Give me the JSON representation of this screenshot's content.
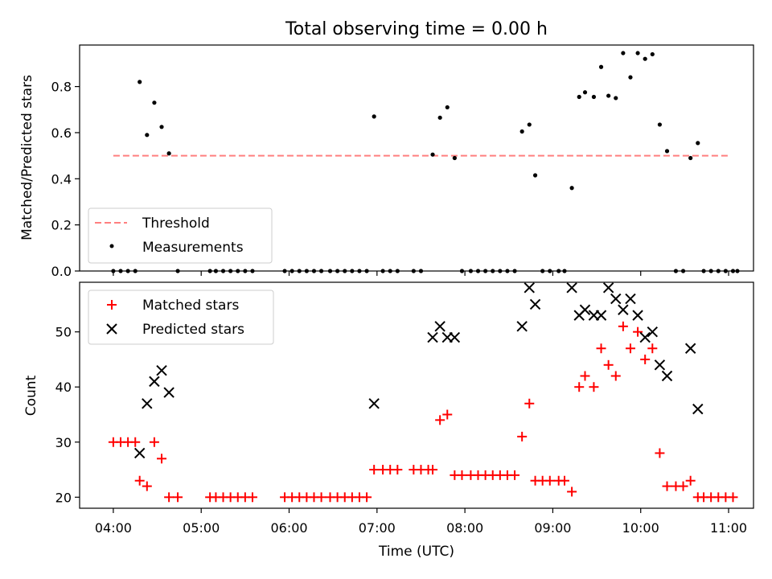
{
  "chart_data": [
    {
      "type": "scatter",
      "title": "Total observing time = 0.00 h",
      "xlabel": "",
      "ylabel": "Matched/Predicted stars",
      "ylim": [
        0,
        0.98
      ],
      "yticks": [
        "0.0",
        "0.2",
        "0.4",
        "0.6",
        "0.8"
      ],
      "threshold": {
        "name": "Threshold",
        "value": 0.5,
        "x_from": "04:00",
        "x_to": "11:00",
        "color": "#ff7f7f"
      },
      "series": [
        {
          "name": "Measurements",
          "color": "#000000",
          "points": [
            [
              "04:00",
              0
            ],
            [
              "04:05",
              0
            ],
            [
              "04:10",
              0
            ],
            [
              "04:15",
              0
            ],
            [
              "04:18",
              0.82
            ],
            [
              "04:23",
              0.59
            ],
            [
              "04:28",
              0.73
            ],
            [
              "04:33",
              0.625
            ],
            [
              "04:38",
              0.51
            ],
            [
              "04:44",
              0
            ],
            [
              "05:06",
              0
            ],
            [
              "05:10",
              0
            ],
            [
              "05:15",
              0
            ],
            [
              "05:20",
              0
            ],
            [
              "05:25",
              0
            ],
            [
              "05:30",
              0
            ],
            [
              "05:35",
              0
            ],
            [
              "05:57",
              0
            ],
            [
              "06:02",
              0
            ],
            [
              "06:07",
              0
            ],
            [
              "06:12",
              0
            ],
            [
              "06:17",
              0
            ],
            [
              "06:22",
              0
            ],
            [
              "06:28",
              0
            ],
            [
              "06:33",
              0
            ],
            [
              "06:38",
              0
            ],
            [
              "06:43",
              0
            ],
            [
              "06:48",
              0
            ],
            [
              "06:53",
              0
            ],
            [
              "06:58",
              0.67
            ],
            [
              "07:04",
              0
            ],
            [
              "07:09",
              0
            ],
            [
              "07:14",
              0
            ],
            [
              "07:25",
              0
            ],
            [
              "07:30",
              0
            ],
            [
              "07:38",
              0.505
            ],
            [
              "07:43",
              0.665
            ],
            [
              "07:48",
              0.71
            ],
            [
              "07:53",
              0.49
            ],
            [
              "07:58",
              0
            ],
            [
              "08:04",
              0
            ],
            [
              "08:09",
              0
            ],
            [
              "08:14",
              0
            ],
            [
              "08:19",
              0
            ],
            [
              "08:24",
              0
            ],
            [
              "08:29",
              0
            ],
            [
              "08:34",
              0
            ],
            [
              "08:39",
              0.605
            ],
            [
              "08:44",
              0.635
            ],
            [
              "08:48",
              0.415
            ],
            [
              "08:53",
              0
            ],
            [
              "08:58",
              0
            ],
            [
              "09:04",
              0
            ],
            [
              "09:08",
              0
            ],
            [
              "09:13",
              0.36
            ],
            [
              "09:18",
              0.755
            ],
            [
              "09:22",
              0.775
            ],
            [
              "09:28",
              0.755
            ],
            [
              "09:33",
              0.885
            ],
            [
              "09:38",
              0.76
            ],
            [
              "09:43",
              0.75
            ],
            [
              "09:48",
              0.945
            ],
            [
              "09:53",
              0.84
            ],
            [
              "09:58",
              0.945
            ],
            [
              "10:03",
              0.92
            ],
            [
              "10:08",
              0.94
            ],
            [
              "10:13",
              0.635
            ],
            [
              "10:18",
              0.52
            ],
            [
              "10:24",
              0
            ],
            [
              "10:29",
              0
            ],
            [
              "10:34",
              0.49
            ],
            [
              "10:39",
              0.555
            ],
            [
              "10:43",
              0
            ],
            [
              "10:48",
              0
            ],
            [
              "10:53",
              0
            ],
            [
              "10:58",
              0
            ],
            [
              "11:03",
              0
            ],
            [
              "11:06",
              0
            ]
          ]
        }
      ],
      "legend": {
        "position": "lower-left",
        "entries": [
          "Threshold",
          "Measurements"
        ]
      }
    },
    {
      "type": "scatter",
      "title": "",
      "xlabel": "Time (UTC)",
      "ylabel": "Count",
      "ylim": [
        18,
        59
      ],
      "yticks": [
        "20",
        "30",
        "40",
        "50"
      ],
      "xticks": [
        "04:00",
        "05:00",
        "06:00",
        "07:00",
        "08:00",
        "09:00",
        "10:00",
        "11:00"
      ],
      "xlim": [
        "03:37",
        "11:17"
      ],
      "series": [
        {
          "name": "Matched stars",
          "marker": "plus",
          "color": "#ff0000",
          "points": [
            [
              "04:00",
              30
            ],
            [
              "04:05",
              30
            ],
            [
              "04:10",
              30
            ],
            [
              "04:15",
              30
            ],
            [
              "04:18",
              23
            ],
            [
              "04:23",
              22
            ],
            [
              "04:28",
              30
            ],
            [
              "04:33",
              27
            ],
            [
              "04:38",
              20
            ],
            [
              "04:44",
              20
            ],
            [
              "05:06",
              20
            ],
            [
              "05:10",
              20
            ],
            [
              "05:15",
              20
            ],
            [
              "05:20",
              20
            ],
            [
              "05:25",
              20
            ],
            [
              "05:30",
              20
            ],
            [
              "05:35",
              20
            ],
            [
              "05:57",
              20
            ],
            [
              "06:02",
              20
            ],
            [
              "06:07",
              20
            ],
            [
              "06:12",
              20
            ],
            [
              "06:17",
              20
            ],
            [
              "06:22",
              20
            ],
            [
              "06:28",
              20
            ],
            [
              "06:33",
              20
            ],
            [
              "06:38",
              20
            ],
            [
              "06:43",
              20
            ],
            [
              "06:48",
              20
            ],
            [
              "06:53",
              20
            ],
            [
              "06:58",
              25
            ],
            [
              "07:04",
              25
            ],
            [
              "07:09",
              25
            ],
            [
              "07:14",
              25
            ],
            [
              "07:25",
              25
            ],
            [
              "07:30",
              25
            ],
            [
              "07:35",
              25
            ],
            [
              "07:38",
              25
            ],
            [
              "07:43",
              34
            ],
            [
              "07:48",
              35
            ],
            [
              "07:53",
              24
            ],
            [
              "07:58",
              24
            ],
            [
              "08:04",
              24
            ],
            [
              "08:09",
              24
            ],
            [
              "08:14",
              24
            ],
            [
              "08:19",
              24
            ],
            [
              "08:24",
              24
            ],
            [
              "08:29",
              24
            ],
            [
              "08:34",
              24
            ],
            [
              "08:39",
              31
            ],
            [
              "08:44",
              37
            ],
            [
              "08:48",
              23
            ],
            [
              "08:53",
              23
            ],
            [
              "08:58",
              23
            ],
            [
              "09:04",
              23
            ],
            [
              "09:08",
              23
            ],
            [
              "09:13",
              21
            ],
            [
              "09:18",
              40
            ],
            [
              "09:22",
              42
            ],
            [
              "09:28",
              40
            ],
            [
              "09:33",
              47
            ],
            [
              "09:38",
              44
            ],
            [
              "09:43",
              42
            ],
            [
              "09:48",
              51
            ],
            [
              "09:53",
              47
            ],
            [
              "09:58",
              50
            ],
            [
              "10:03",
              45
            ],
            [
              "10:08",
              47
            ],
            [
              "10:13",
              28
            ],
            [
              "10:18",
              22
            ],
            [
              "10:24",
              22
            ],
            [
              "10:29",
              22
            ],
            [
              "10:34",
              23
            ],
            [
              "10:39",
              20
            ],
            [
              "10:43",
              20
            ],
            [
              "10:48",
              20
            ],
            [
              "10:53",
              20
            ],
            [
              "10:58",
              20
            ],
            [
              "11:03",
              20
            ]
          ]
        },
        {
          "name": "Predicted stars",
          "marker": "x",
          "color": "#000000",
          "points": [
            [
              "04:18",
              28
            ],
            [
              "04:23",
              37
            ],
            [
              "04:28",
              41
            ],
            [
              "04:33",
              43
            ],
            [
              "04:38",
              39
            ],
            [
              "06:58",
              37
            ],
            [
              "07:38",
              49
            ],
            [
              "07:43",
              51
            ],
            [
              "07:48",
              49
            ],
            [
              "07:53",
              49
            ],
            [
              "08:39",
              51
            ],
            [
              "08:44",
              58
            ],
            [
              "08:48",
              55
            ],
            [
              "09:13",
              58
            ],
            [
              "09:18",
              53
            ],
            [
              "09:22",
              54
            ],
            [
              "09:28",
              53
            ],
            [
              "09:33",
              53
            ],
            [
              "09:38",
              58
            ],
            [
              "09:43",
              56
            ],
            [
              "09:48",
              54
            ],
            [
              "09:53",
              56
            ],
            [
              "09:58",
              53
            ],
            [
              "10:03",
              49
            ],
            [
              "10:08",
              50
            ],
            [
              "10:13",
              44
            ],
            [
              "10:18",
              42
            ],
            [
              "10:34",
              47
            ],
            [
              "10:39",
              36
            ]
          ]
        }
      ],
      "legend": {
        "position": "upper-left",
        "entries": [
          "Matched stars",
          "Predicted stars"
        ]
      }
    }
  ]
}
